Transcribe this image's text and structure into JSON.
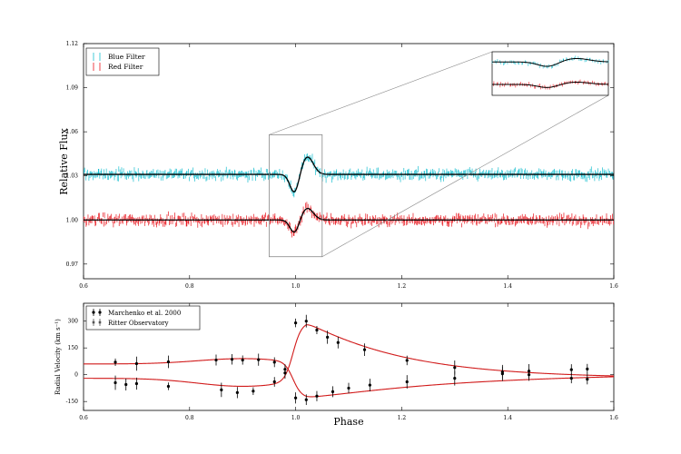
{
  "chart_data": [
    {
      "type": "scatter",
      "name": "light-curve",
      "xlabel": "",
      "ylabel": "Relative Flux",
      "xlim": [
        0.6,
        1.6
      ],
      "ylim": [
        0.96,
        1.12
      ],
      "xticks": [
        "0.6",
        "0.8",
        "1.0",
        "1.2",
        "1.4",
        "1.6"
      ],
      "yticks": [
        "0.97",
        "1.00",
        "1.03",
        "1.06",
        "1.09",
        "1.12"
      ],
      "ytick_values": [
        0.97,
        1.0,
        1.03,
        1.06,
        1.09,
        1.12
      ],
      "xtick_values": [
        0.6,
        0.8,
        1.0,
        1.2,
        1.4,
        1.6
      ],
      "legend": {
        "placement": "top-left",
        "entries": [
          {
            "label": "Blue Filter",
            "color": "#17becf"
          },
          {
            "label": "Red Filter",
            "color": "#e8141c"
          }
        ]
      },
      "series": [
        {
          "name": "Blue Filter",
          "color": "#17becf",
          "baseline": 1.031,
          "amplitude": 1.0,
          "noise": 0.0035,
          "n_points": 560
        },
        {
          "name": "Red Filter",
          "color": "#e8141c",
          "baseline": 1.0,
          "amplitude": 0.65,
          "noise": 0.0035,
          "n_points": 560
        }
      ],
      "model": {
        "color": "#000000",
        "center": 1.0,
        "description": "dip then bump near phase 1.0",
        "blue_dip": -0.013,
        "blue_bump": 0.012,
        "red_dip": -0.009,
        "red_bump": 0.008
      },
      "zoom_region": {
        "xlim": [
          0.95,
          1.05
        ],
        "ylim": [
          0.975,
          1.058
        ]
      },
      "inset": {
        "placement": "top-right",
        "description": "magnified view of eclipse region"
      }
    },
    {
      "type": "scatter",
      "name": "radial-velocity",
      "xlabel": "Phase",
      "ylabel": "Radial Velocity (km s⁻¹)",
      "xlim": [
        0.6,
        1.6
      ],
      "ylim": [
        -200,
        400
      ],
      "xticks": [
        "0.6",
        "0.8",
        "1.0",
        "1.2",
        "1.4",
        "1.6"
      ],
      "xtick_values": [
        0.6,
        0.8,
        1.0,
        1.2,
        1.4,
        1.6
      ],
      "yticks": [
        "-150",
        "0",
        "150",
        "300"
      ],
      "ytick_values": [
        -150,
        0,
        150,
        300
      ],
      "legend": {
        "placement": "top-left",
        "entries": [
          {
            "label": "Marchenko et al. 2000",
            "color": "#000000"
          },
          {
            "label": "Ritter Observatory",
            "color": "#555555"
          }
        ]
      },
      "curve_color": "#d11a1a",
      "star1": [
        [
          0.66,
          70
        ],
        [
          0.7,
          62
        ],
        [
          0.76,
          72
        ],
        [
          0.85,
          82
        ],
        [
          0.88,
          86
        ],
        [
          0.9,
          82
        ],
        [
          0.93,
          84
        ],
        [
          0.96,
          70
        ],
        [
          0.98,
          30
        ],
        [
          1.0,
          -130
        ],
        [
          1.02,
          -140
        ],
        [
          1.04,
          -120
        ],
        [
          1.07,
          -95
        ],
        [
          1.1,
          -75
        ],
        [
          1.14,
          -58
        ],
        [
          1.21,
          -40
        ],
        [
          1.3,
          -20
        ],
        [
          1.39,
          5
        ],
        [
          1.44,
          20
        ],
        [
          1.52,
          28
        ],
        [
          1.55,
          32
        ]
      ],
      "star2": [
        [
          0.66,
          -45
        ],
        [
          0.68,
          -55
        ],
        [
          0.7,
          -50
        ],
        [
          0.76,
          -65
        ],
        [
          0.86,
          -85
        ],
        [
          0.89,
          -100
        ],
        [
          0.92,
          -92
        ],
        [
          0.96,
          -40
        ],
        [
          0.98,
          10
        ],
        [
          1.0,
          290
        ],
        [
          1.02,
          300
        ],
        [
          1.04,
          250
        ],
        [
          1.06,
          210
        ],
        [
          1.08,
          180
        ],
        [
          1.13,
          140
        ],
        [
          1.21,
          80
        ],
        [
          1.3,
          40
        ],
        [
          1.39,
          15
        ],
        [
          1.44,
          0
        ],
        [
          1.52,
          -20
        ],
        [
          1.55,
          -25
        ]
      ]
    }
  ]
}
